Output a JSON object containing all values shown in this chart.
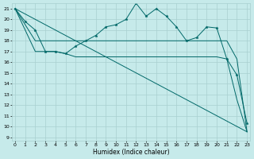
{
  "xlabel": "Humidex (Indice chaleur)",
  "background_color": "#c6eaea",
  "grid_color": "#a8d0d0",
  "line_color": "#006868",
  "x_ticks": [
    0,
    1,
    2,
    3,
    4,
    5,
    6,
    7,
    8,
    9,
    10,
    11,
    12,
    13,
    14,
    15,
    16,
    17,
    18,
    19,
    20,
    21,
    22,
    23
  ],
  "y_ticks": [
    9,
    10,
    11,
    12,
    13,
    14,
    15,
    16,
    17,
    18,
    19,
    20,
    21
  ],
  "xlim": [
    -0.3,
    23.3
  ],
  "ylim": [
    8.7,
    21.5
  ],
  "series1_x": [
    0,
    1,
    2,
    3,
    4,
    5,
    6,
    7,
    8,
    9,
    10,
    11,
    12,
    13,
    14,
    15,
    16,
    17,
    18,
    19,
    20,
    21,
    22,
    23
  ],
  "series1_y": [
    21.0,
    19.8,
    19.0,
    17.0,
    17.0,
    16.8,
    17.5,
    18.0,
    18.5,
    19.3,
    19.5,
    20.0,
    21.5,
    20.3,
    21.0,
    20.3,
    19.3,
    18.0,
    18.3,
    19.3,
    19.2,
    16.3,
    14.8,
    10.3
  ],
  "series2_x": [
    0,
    2,
    3,
    4,
    5,
    6,
    7,
    8,
    9,
    10,
    11,
    12,
    13,
    14,
    15,
    16,
    17,
    18,
    19,
    20,
    21,
    22,
    23
  ],
  "series2_y": [
    21.0,
    18.0,
    18.0,
    18.0,
    18.0,
    18.0,
    18.0,
    18.0,
    18.0,
    18.0,
    18.0,
    18.0,
    18.0,
    18.0,
    18.0,
    18.0,
    18.0,
    18.0,
    18.0,
    18.0,
    18.0,
    16.3,
    9.5
  ],
  "series3_x": [
    0,
    2,
    3,
    4,
    5,
    6,
    7,
    8,
    9,
    10,
    11,
    12,
    13,
    14,
    15,
    16,
    17,
    18,
    19,
    20,
    21,
    22,
    23
  ],
  "series3_y": [
    21.0,
    17.0,
    17.0,
    17.0,
    16.8,
    16.5,
    16.5,
    16.5,
    16.5,
    16.5,
    16.5,
    16.5,
    16.5,
    16.5,
    16.5,
    16.5,
    16.5,
    16.5,
    16.5,
    16.5,
    16.3,
    12.5,
    9.5
  ]
}
